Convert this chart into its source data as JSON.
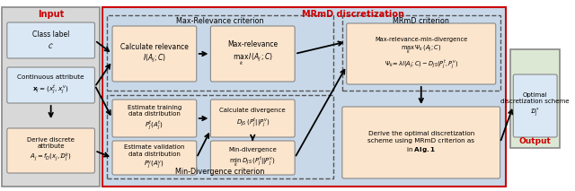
{
  "input_panel_color": "#d8d8d8",
  "input_label_color": "#cc0000",
  "output_panel_color": "#dce8d4",
  "output_label_color": "#cc0000",
  "mrmD_panel_color": "#c8d8e8",
  "mrmD_label_color": "#cc0000",
  "dashed_panel_color": "#c8d8e8",
  "box_blue_color": "#dae8f5",
  "box_peach_color": "#fce5cd",
  "title_input": "Input",
  "title_output": "Output",
  "title_mrmD": "MRmD discretization",
  "title_maxrel": "Max-Relevance criterion",
  "title_mindiv": "Min-Divergence criterion",
  "title_mrmDcrit": "MRmD criterion",
  "box_class_label": "Class label\n$\\mathcal{C}$",
  "box_continuous": "Continuous attribute\n$\\mathbf{x}_j = (x_j^t, x_j^v)$",
  "box_derive": "Derive discrete\nattribute\n$A_j = f_D(x_j, \\mathcal{D}_j^k)$",
  "box_calc_rel": "Calculate relevance\n$I(A_j; C)$",
  "box_max_rel": "Max-relevance\n$\\max_k\\, I(A_j; C)$",
  "box_est_train": "Estimate training\ndata distribution\n$P_j^t(A_j^t)$",
  "box_est_val": "Estimate validation\ndata distribution\n$P_j^v(A_j^v)$",
  "box_calc_div": "Calculate divergence\n$D_{JS}\\,(P_j^t||P_j^v)$",
  "box_min_div": "Min-divergence\n$\\min_k\\, D_{JS}(P_j^t||P_j^v)$",
  "box_mrmD_crit": "Max-relevance-min-divergence\n$\\max_k\\,\\Psi_k(A_j; C)$\n$\\Psi_k\\!= \\lambda I(A_j; C) - D_{JS}(P_j^t, P_j^v)$",
  "box_derive_opt": "Derive the optimal discretization\nscheme using MRmD criterion as\nin $\\mathbf{Alg. 1}$",
  "box_output": "Optimal\ndiscretization scheme\n$\\mathcal{D}_j^*$"
}
